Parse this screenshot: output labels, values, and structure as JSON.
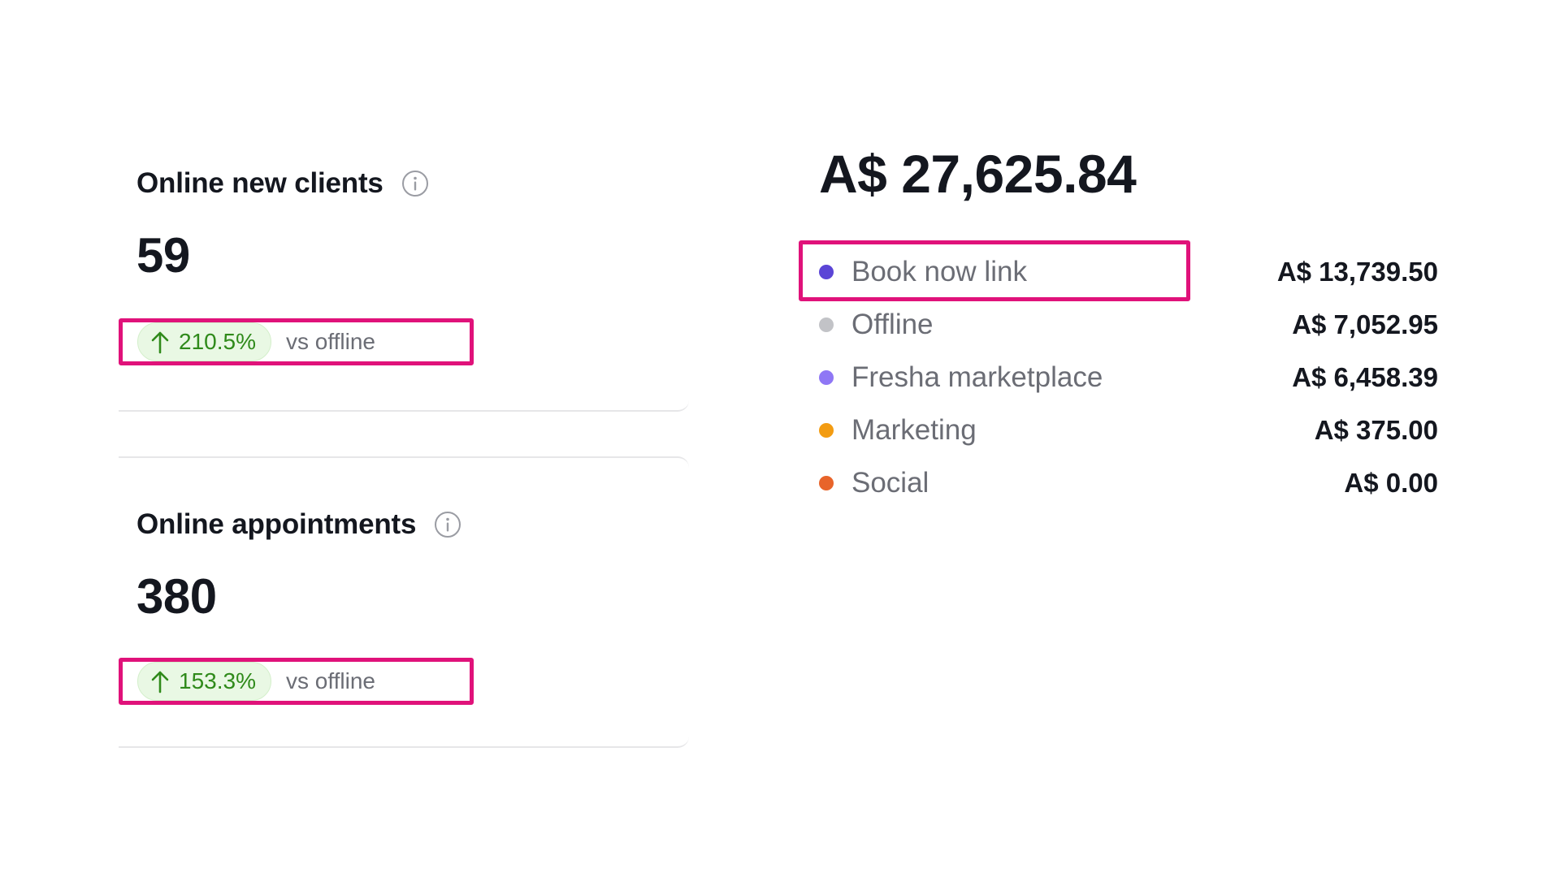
{
  "stats": [
    {
      "title": "Online new clients",
      "value": "59",
      "delta": "210.5%",
      "comparison": "vs offline"
    },
    {
      "title": "Online appointments",
      "value": "380",
      "delta": "153.3%",
      "comparison": "vs offline"
    }
  ],
  "breakdown": {
    "total": "A$ 27,625.84",
    "items": [
      {
        "label": "Book now link",
        "value": "A$ 13,739.50",
        "color": "#5b45d6"
      },
      {
        "label": "Offline",
        "value": "A$ 7,052.95",
        "color": "#c2c3c7"
      },
      {
        "label": "Fresha marketplace",
        "value": "A$ 6,458.39",
        "color": "#8f77f5"
      },
      {
        "label": "Marketing",
        "value": "A$ 375.00",
        "color": "#f39c12"
      },
      {
        "label": "Social",
        "value": "A$ 0.00",
        "color": "#e8642a"
      }
    ]
  },
  "colors": {
    "highlight": "#e0127a",
    "positive": "#2f8a1a",
    "positive_bg": "#e9f8e4"
  },
  "icons": {
    "info": "info-icon",
    "trend": "arrow-up-icon"
  }
}
